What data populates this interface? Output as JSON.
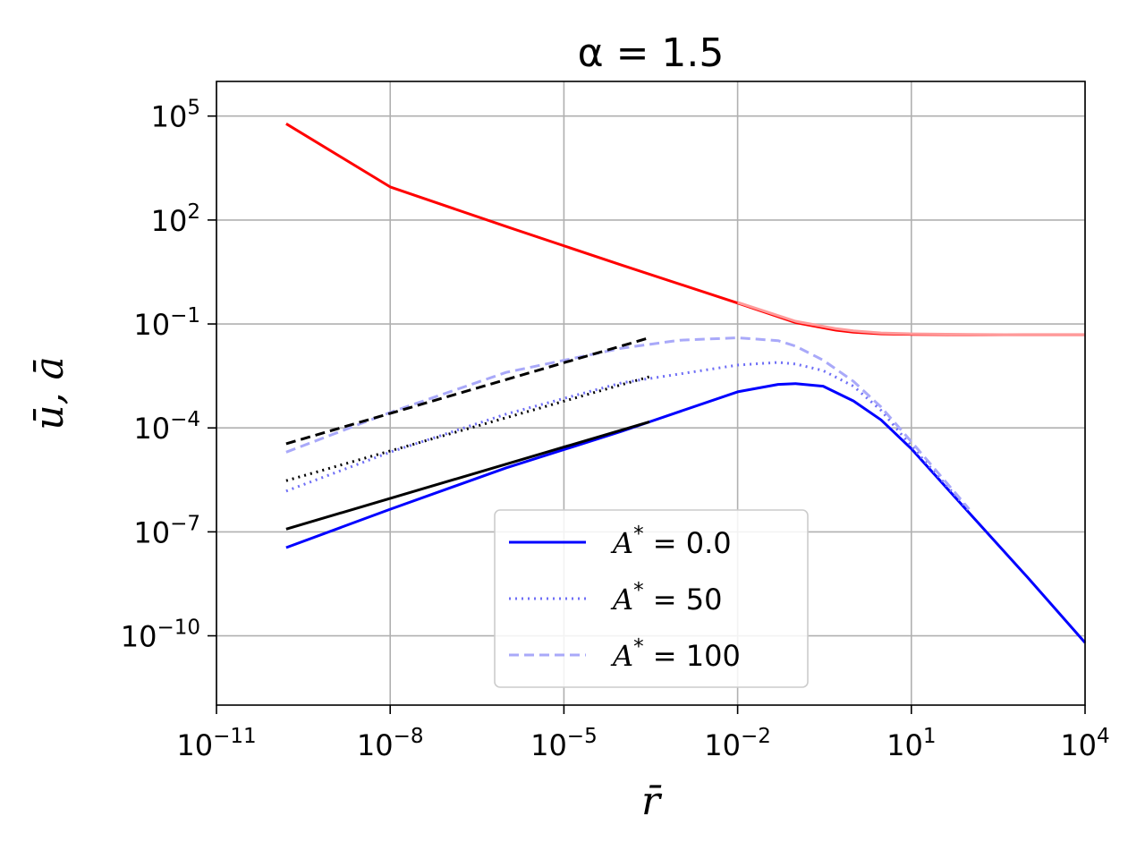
{
  "chart_data": {
    "type": "line",
    "title": "α = 1.5",
    "xlabel": "r̄",
    "ylabel": "ū, ā",
    "xscale": "log",
    "yscale": "log",
    "xlim": [
      1e-11,
      10000.0
    ],
    "ylim": [
      1e-12,
      1000000.0
    ],
    "grid": true,
    "legend_placement": "lower-center",
    "x_ticks": [
      {
        "base": "10",
        "exp": "−11"
      },
      {
        "base": "10",
        "exp": "−8"
      },
      {
        "base": "10",
        "exp": "−5"
      },
      {
        "base": "10",
        "exp": "−2"
      },
      {
        "base": "10",
        "exp": "1"
      },
      {
        "base": "10",
        "exp": "4"
      }
    ],
    "y_ticks": [
      {
        "base": "10",
        "exp": "5"
      },
      {
        "base": "10",
        "exp": "2"
      },
      {
        "base": "10",
        "exp": "−1"
      },
      {
        "base": "10",
        "exp": "−4"
      },
      {
        "base": "10",
        "exp": "−7"
      },
      {
        "base": "10",
        "exp": "−10"
      }
    ],
    "legend": [
      {
        "label": "A* = 0.0",
        "sym": "A",
        "sup": "*",
        "rest": " = 0.0",
        "color": "#0000ff",
        "dash": "solid"
      },
      {
        "label": "A* = 50",
        "sym": "A",
        "sup": "*",
        "rest": " = 50",
        "color": "#6f6ff6",
        "dash": "dotted"
      },
      {
        "label": "A* = 100",
        "sym": "A",
        "sup": "*",
        "rest": " = 100",
        "color": "#a9a9f9",
        "dash": "dashed"
      }
    ],
    "series": [
      {
        "color": "#ff0000",
        "dash": "solid",
        "x": [
          1.6e-10,
          1e-08,
          1e-06,
          0.0001,
          0.01,
          0.1,
          0.5,
          1,
          3,
          10,
          100,
          1000,
          10000
        ],
        "y": [
          60000,
          900,
          65,
          5,
          0.4,
          0.11,
          0.066,
          0.058,
          0.052,
          0.05,
          0.049,
          0.049,
          0.049
        ]
      },
      {
        "color": "#ff9a9a",
        "dash": "solid",
        "x": [
          0.01,
          0.1,
          0.5,
          1,
          3,
          10,
          100,
          1000,
          10000
        ],
        "y": [
          0.42,
          0.12,
          0.073,
          0.063,
          0.055,
          0.052,
          0.05,
          0.049,
          0.049
        ]
      },
      {
        "color": "#0000ff",
        "dash": "solid",
        "x": [
          1.6e-10,
          1e-08,
          1e-06,
          0.0001,
          0.01,
          0.05,
          0.1,
          0.3,
          1,
          3,
          10,
          100,
          1000,
          10000
        ],
        "y": [
          3.5e-08,
          4.5e-07,
          7e-06,
          8e-05,
          0.0011,
          0.0018,
          0.0019,
          0.0016,
          0.0006,
          0.00017,
          2.5e-05,
          3.5e-07,
          5e-09,
          6.3e-11
        ]
      },
      {
        "color": "#6f6ff6",
        "dash": "dotted",
        "x": [
          1.6e-10,
          1e-08,
          1e-06,
          0.0001,
          0.01,
          0.05,
          0.1,
          0.3,
          1,
          3,
          10,
          100
        ],
        "y": [
          1.5e-06,
          2e-05,
          0.00025,
          0.002,
          0.0065,
          0.0078,
          0.007,
          0.0045,
          0.0016,
          0.00032,
          3e-05,
          4e-07
        ]
      },
      {
        "color": "#a9a9f9",
        "dash": "dashed",
        "x": [
          1.6e-10,
          1e-08,
          1e-06,
          0.0001,
          0.001,
          0.01,
          0.05,
          0.1,
          0.3,
          1,
          3,
          10,
          100
        ],
        "y": [
          2e-05,
          0.00028,
          0.004,
          0.02,
          0.034,
          0.04,
          0.033,
          0.023,
          0.009,
          0.0022,
          0.0004,
          4e-05,
          4.5e-07
        ]
      },
      {
        "color": "#000000",
        "dash": "solid",
        "x": [
          1.6e-10,
          0.0003
        ],
        "y": [
          1.2e-07,
          0.00015
        ]
      },
      {
        "color": "#000000",
        "dash": "dotted",
        "x": [
          1.6e-10,
          0.0003
        ],
        "y": [
          3e-06,
          0.003
        ]
      },
      {
        "color": "#000000",
        "dash": "dashed",
        "x": [
          1.6e-10,
          0.0003
        ],
        "y": [
          3.5e-05,
          0.04
        ]
      }
    ]
  }
}
